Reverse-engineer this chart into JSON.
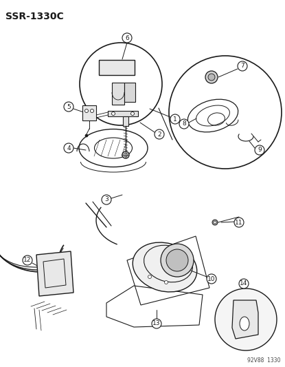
{
  "title": "SSR-1330C",
  "bg_color": "#ffffff",
  "fg_color": "#000000",
  "watermark": "92V88  1330",
  "figsize": [
    4.15,
    5.33
  ],
  "dpi": 100
}
